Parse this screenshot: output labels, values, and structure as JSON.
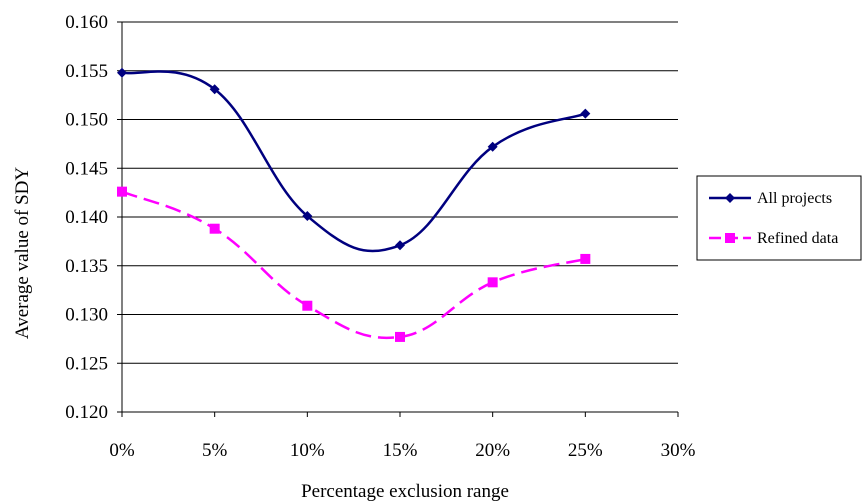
{
  "chart_data": {
    "type": "line",
    "title": "",
    "xlabel": "Percentage exclusion range",
    "ylabel": "Average value of SDY",
    "x": [
      0,
      5,
      10,
      15,
      20,
      25
    ],
    "x_ticks": [
      "0%",
      "5%",
      "10%",
      "15%",
      "20%",
      "25%",
      "30%"
    ],
    "x_tick_values": [
      0,
      5,
      10,
      15,
      20,
      25,
      30
    ],
    "xlim": [
      0,
      30
    ],
    "y_ticks": [
      "0.120",
      "0.125",
      "0.130",
      "0.135",
      "0.140",
      "0.145",
      "0.150",
      "0.155",
      "0.160"
    ],
    "y_tick_values": [
      0.12,
      0.125,
      0.13,
      0.135,
      0.14,
      0.145,
      0.15,
      0.155,
      0.16
    ],
    "ylim": [
      0.12,
      0.16
    ],
    "grid": "horizontal",
    "legend_position": "right",
    "smooth": true,
    "series": [
      {
        "name": "All projects",
        "values": [
          0.1548,
          0.1531,
          0.1401,
          0.1371,
          0.1472,
          0.1506
        ],
        "color": "#00007F",
        "marker": "diamond",
        "dash": "solid"
      },
      {
        "name": "Refined data",
        "values": [
          0.1426,
          0.1388,
          0.1309,
          0.1277,
          0.1333,
          0.1357
        ],
        "color": "#FF00FF",
        "marker": "square",
        "dash": "dashed"
      }
    ]
  }
}
